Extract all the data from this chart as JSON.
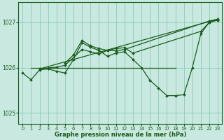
{
  "bg_color": "#c8e8e0",
  "grid_color": "#88ccb8",
  "line_color": "#1a5c1a",
  "title": "Graphe pression niveau de la mer (hPa)",
  "xlim": [
    -0.5,
    23.5
  ],
  "ylim": [
    1024.75,
    1027.45
  ],
  "yticks": [
    1025,
    1026,
    1027
  ],
  "xticks": [
    0,
    1,
    2,
    3,
    4,
    5,
    6,
    7,
    8,
    9,
    10,
    11,
    12,
    13,
    14,
    15,
    16,
    17,
    18,
    19,
    20,
    21,
    22,
    23
  ],
  "series": [
    {
      "x": [
        0,
        1,
        2,
        3,
        4,
        5,
        6,
        7,
        8,
        9,
        10,
        11,
        12,
        13,
        14,
        15,
        16,
        17,
        18,
        19,
        20,
        21,
        22,
        23
      ],
      "y": [
        1025.88,
        1025.73,
        1025.95,
        1025.97,
        1025.92,
        1025.88,
        1026.18,
        1026.55,
        1026.45,
        1026.38,
        1026.25,
        1026.32,
        1026.35,
        1026.18,
        1026.0,
        1025.72,
        1025.55,
        1025.38,
        1025.38,
        1025.4,
        1026.0,
        1026.75,
        1027.0,
        1027.05
      ],
      "with_marker": true,
      "lw": 0.9
    },
    {
      "x": [
        1,
        18
      ],
      "y": [
        1026.0,
        1026.0
      ],
      "with_marker": false,
      "lw": 0.9
    },
    {
      "x": [
        2,
        23
      ],
      "y": [
        1025.97,
        1027.07
      ],
      "with_marker": false,
      "lw": 0.9
    },
    {
      "x": [
        2,
        3,
        4,
        5,
        7,
        8,
        9,
        10,
        11,
        12,
        13,
        21,
        22,
        23
      ],
      "y": [
        1025.97,
        1025.99,
        1026.01,
        1026.05,
        1026.4,
        1026.35,
        1026.3,
        1026.38,
        1026.42,
        1026.44,
        1026.32,
        1026.8,
        1027.0,
        1027.05
      ],
      "with_marker": true,
      "lw": 0.9
    },
    {
      "x": [
        5,
        6,
        7,
        8,
        9,
        10,
        11,
        12,
        22,
        23
      ],
      "y": [
        1026.1,
        1026.28,
        1026.6,
        1026.48,
        1026.42,
        1026.38,
        1026.37,
        1026.4,
        1027.03,
        1027.07
      ],
      "with_marker": true,
      "lw": 0.9
    }
  ]
}
